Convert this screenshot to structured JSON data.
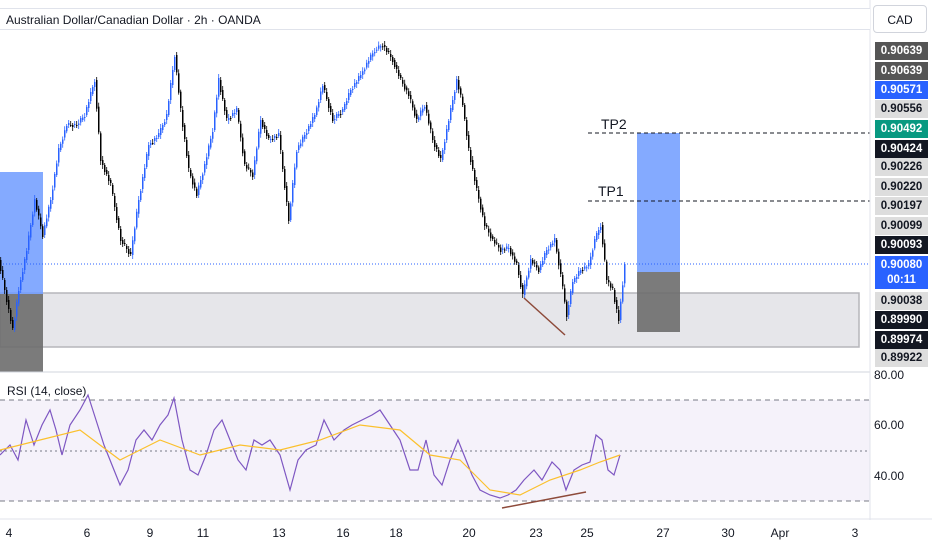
{
  "header": {
    "title": "Australian Dollar/Canadian Dollar · 2h · OANDA",
    "currency": "CAD"
  },
  "price_axis": {
    "labels": [
      {
        "text": "0.90639",
        "style": "gray"
      },
      {
        "text": "0.90639",
        "style": "gray"
      },
      {
        "text": "0.90571",
        "style": "blue"
      },
      {
        "text": "0.90556",
        "style": "light"
      },
      {
        "text": "0.90492",
        "style": "green"
      },
      {
        "text": "0.90424",
        "style": "dark"
      },
      {
        "text": "0.90226",
        "style": "light"
      },
      {
        "text": "0.90220",
        "style": "light"
      },
      {
        "text": "0.90197",
        "style": "light"
      },
      {
        "text": "0.90099",
        "style": "light"
      },
      {
        "text": "0.90093",
        "style": "dark"
      },
      {
        "text": "0.90080",
        "style": "blue"
      },
      {
        "text": "00:11",
        "style": "blue"
      },
      {
        "text": "0.90038",
        "style": "light"
      },
      {
        "text": "0.89990",
        "style": "dark"
      },
      {
        "text": "0.89974",
        "style": "dark"
      },
      {
        "text": "0.89922",
        "style": "light"
      }
    ]
  },
  "rsi": {
    "label": "RSI (14, close)",
    "axis_labels": [
      "80.00",
      "60.00",
      "40.00"
    ],
    "upper": 70,
    "middle": 50,
    "lower": 30
  },
  "annotations": {
    "tp2": "TP2",
    "tp1": "TP1"
  },
  "time_axis": {
    "labels": [
      "4",
      "6",
      "9",
      "11",
      "13",
      "16",
      "18",
      "20",
      "23",
      "25",
      "27",
      "30",
      "Apr",
      "3"
    ]
  },
  "colors": {
    "bull": "#2962ff",
    "bear": "#000000",
    "rsi_line": "#7e57c2",
    "rsi_ma": "#fbc02d",
    "profit_zone": "#6e9bff",
    "loss_zone": "#7a7a7a",
    "demand_zone": "#e6e6ea"
  },
  "chart_data": {
    "type": "candlestick",
    "symbol": "AUDCAD",
    "interval": "2h",
    "price_range": [
      0.899,
      0.9066
    ],
    "current_price": 0.9008,
    "tp1": 0.90197,
    "tp2": 0.90424,
    "rsi_range": [
      20,
      80
    ]
  }
}
